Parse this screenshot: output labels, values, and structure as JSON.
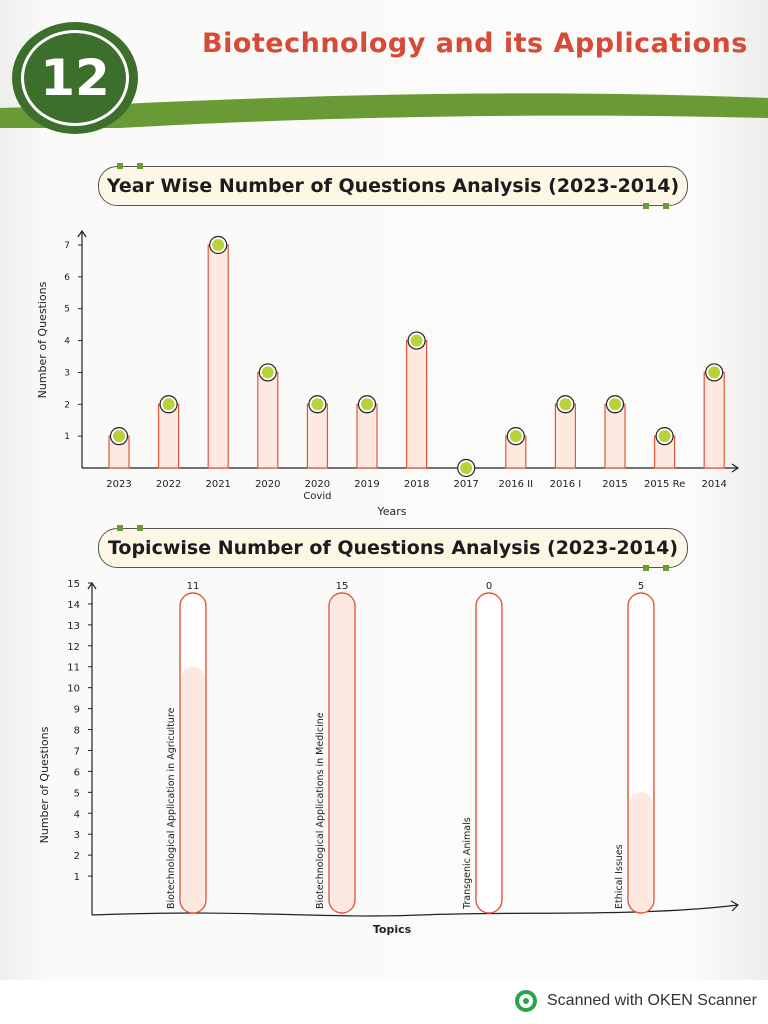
{
  "chapter": {
    "number": "12",
    "title": "Biotechnology and its Applications"
  },
  "colors": {
    "accent_green": "#6a9a35",
    "chapter_green": "#3c6e2c",
    "title_red": "#d64a37",
    "bar_fill": "#fde9df",
    "bar_outline": "#e0563f",
    "marker": "#b8d33a"
  },
  "chart_data": [
    {
      "type": "bar",
      "title": "Year Wise Number of Questions Analysis (2023-2014)",
      "xlabel": "Years",
      "ylabel": "Number of Questions",
      "categories": [
        "2023",
        "2022",
        "2021",
        "2020",
        "2020 Covid",
        "2019",
        "2018",
        "2017",
        "2016 II",
        "2016 I",
        "2015",
        "2015 Re",
        "2014"
      ],
      "category_lines": [
        [
          "2023"
        ],
        [
          "2022"
        ],
        [
          "2021"
        ],
        [
          "2020"
        ],
        [
          "2020",
          "Covid"
        ],
        [
          "2019"
        ],
        [
          "2018"
        ],
        [
          "2017"
        ],
        [
          "2016 II"
        ],
        [
          "2016 I"
        ],
        [
          "2015"
        ],
        [
          "2015 Re"
        ],
        [
          "2014"
        ]
      ],
      "values": [
        1,
        2,
        7,
        3,
        2,
        2,
        4,
        0,
        1,
        2,
        2,
        1,
        3
      ],
      "yticks": [
        1,
        2,
        3,
        4,
        5,
        6,
        7
      ],
      "ylim": [
        0,
        7
      ],
      "grid": false,
      "marker": "green circle on top of each bar"
    },
    {
      "type": "bar",
      "title": "Topicwise Number of Questions Analysis (2023-2014)",
      "xlabel": "Topics",
      "ylabel": "Number of Questions",
      "categories": [
        "Biotechnological Application in Agriculture",
        "Biotechnological Applications in Medicine",
        "Transgenic Animals",
        "Ethical Issues"
      ],
      "values": [
        11,
        15,
        0,
        5
      ],
      "data_labels": [
        "11",
        "15",
        "0",
        "5"
      ],
      "yticks": [
        1,
        2,
        3,
        4,
        5,
        6,
        7,
        8,
        9,
        10,
        11,
        12,
        13,
        14,
        15
      ],
      "ylim": [
        0,
        15
      ],
      "grid": false,
      "bar_style": "rounded capsule columns, filled to value"
    }
  ],
  "scanner": {
    "text": "Scanned with OKEN Scanner"
  }
}
